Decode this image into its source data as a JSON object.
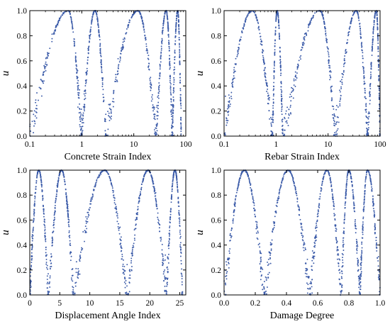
{
  "colors": {
    "marker": "#3a5aa8",
    "axis": "#000000",
    "background": "#ffffff"
  },
  "chart_data": [
    {
      "type": "scatter",
      "title": "",
      "xlabel": "Concrete Strain Index",
      "ylabel": "u",
      "xscale": "log",
      "xlim": [
        0.1,
        100
      ],
      "ylim": [
        0,
        1
      ],
      "xticks": [
        0.1,
        1,
        10,
        100
      ],
      "xtick_labels": [
        "0.1",
        "1",
        "10",
        "100"
      ],
      "yticks": [
        0,
        0.2,
        0.4,
        0.6,
        0.8,
        1.0
      ],
      "ytick_labels": [
        "0.0",
        "0.2",
        "0.4",
        "0.6",
        "0.8",
        "1.0"
      ],
      "grid": false,
      "series": [
        {
          "marker": "dot",
          "peaks": [
            {
              "left_zero": 0.1,
              "peak": 0.55,
              "right_zero": 1.0
            },
            {
              "left_zero": 1.0,
              "peak": 1.8,
              "right_zero": 2.9
            },
            {
              "left_zero": 2.9,
              "peak": 12.0,
              "right_zero": 27.0
            },
            {
              "left_zero": 27.0,
              "peak": 42.0,
              "right_zero": 55.0
            },
            {
              "left_zero": 55.0,
              "peak": 70.0,
              "right_zero": 82.0
            }
          ]
        }
      ]
    },
    {
      "type": "scatter",
      "title": "",
      "xlabel": "Rebar Strain Index",
      "ylabel": "u",
      "xscale": "log",
      "xlim": [
        0.1,
        100
      ],
      "ylim": [
        0,
        1
      ],
      "xticks": [
        0.1,
        1,
        10,
        100
      ],
      "xtick_labels": [
        "0.1",
        "1",
        "10",
        "100"
      ],
      "yticks": [
        0,
        0.2,
        0.4,
        0.6,
        0.8,
        1.0
      ],
      "ytick_labels": [
        "0.0",
        "0.2",
        "0.4",
        "0.6",
        "0.8",
        "1.0"
      ],
      "grid": false,
      "series": [
        {
          "marker": "dot",
          "peaks": [
            {
              "left_zero": 0.1,
              "peak": 0.35,
              "right_zero": 0.85
            },
            {
              "left_zero": 0.85,
              "peak": 1.05,
              "right_zero": 1.35
            },
            {
              "left_zero": 1.35,
              "peak": 7.0,
              "right_zero": 14.0
            },
            {
              "left_zero": 14.0,
              "peak": 35.0,
              "right_zero": 58.0
            },
            {
              "left_zero": 58.0,
              "peak": 85.0,
              "right_zero": 100.0
            }
          ]
        }
      ]
    },
    {
      "type": "scatter",
      "title": "",
      "xlabel": "Displacement Angle Index",
      "ylabel": "u",
      "xscale": "linear",
      "xlim": [
        0,
        26
      ],
      "ylim": [
        0,
        1
      ],
      "xticks": [
        0,
        5,
        10,
        15,
        20,
        25
      ],
      "xtick_labels": [
        "0",
        "5",
        "10",
        "15",
        "20",
        "25"
      ],
      "yticks": [
        0,
        0.2,
        0.4,
        0.6,
        0.8,
        1.0
      ],
      "ytick_labels": [
        "0.0",
        "0.2",
        "0.4",
        "0.6",
        "0.8",
        "1.0"
      ],
      "grid": false,
      "series": [
        {
          "marker": "dot",
          "peaks": [
            {
              "left_zero": 0.0,
              "peak": 1.5,
              "right_zero": 3.1
            },
            {
              "left_zero": 3.1,
              "peak": 5.3,
              "right_zero": 7.3
            },
            {
              "left_zero": 7.3,
              "peak": 12.5,
              "right_zero": 16.3
            },
            {
              "left_zero": 16.3,
              "peak": 19.7,
              "right_zero": 22.8
            },
            {
              "left_zero": 22.8,
              "peak": 24.2,
              "right_zero": 25.5
            }
          ]
        }
      ]
    },
    {
      "type": "scatter",
      "title": "",
      "xlabel": "Damage Degree",
      "ylabel": "u",
      "xscale": "linear",
      "xlim": [
        0,
        1
      ],
      "ylim": [
        0,
        1
      ],
      "xticks": [
        0,
        0.2,
        0.4,
        0.6,
        0.8,
        1.0
      ],
      "xtick_labels": [
        "0.0",
        "0.2",
        "0.4",
        "0.6",
        "0.8",
        "1.0"
      ],
      "yticks": [
        0,
        0.2,
        0.4,
        0.6,
        0.8,
        1.0
      ],
      "ytick_labels": [
        "0.0",
        "0.2",
        "0.4",
        "0.6",
        "0.8",
        "1.0"
      ],
      "grid": false,
      "series": [
        {
          "marker": "dot",
          "peaks": [
            {
              "left_zero": 0.0,
              "peak": 0.13,
              "right_zero": 0.26
            },
            {
              "left_zero": 0.26,
              "peak": 0.41,
              "right_zero": 0.55
            },
            {
              "left_zero": 0.55,
              "peak": 0.66,
              "right_zero": 0.75
            },
            {
              "left_zero": 0.75,
              "peak": 0.8,
              "right_zero": 0.87
            },
            {
              "left_zero": 0.87,
              "peak": 0.92,
              "right_zero": 1.0
            }
          ]
        }
      ]
    }
  ]
}
